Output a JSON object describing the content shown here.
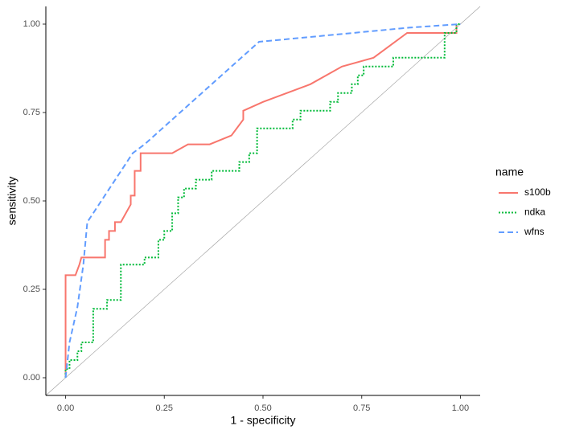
{
  "chart_data": {
    "type": "line",
    "x_label": "1 - specificity",
    "y_label": "sensitivity",
    "legend_title": "name",
    "legend": "right",
    "diagonal": true,
    "xlim": [
      -0.05,
      1.05
    ],
    "ylim": [
      -0.05,
      1.05
    ],
    "xticks": [
      {
        "value": 0,
        "label": "0.00"
      },
      {
        "value": 0.25,
        "label": "0.25"
      },
      {
        "value": 0.5,
        "label": "0.50"
      },
      {
        "value": 0.75,
        "label": "0.75"
      },
      {
        "value": 1,
        "label": "1.00"
      }
    ],
    "yticks": [
      {
        "value": 0,
        "label": "0.00"
      },
      {
        "value": 0.25,
        "label": "0.25"
      },
      {
        "value": 0.5,
        "label": "0.50"
      },
      {
        "value": 0.75,
        "label": "0.75"
      },
      {
        "value": 1,
        "label": "1.00"
      }
    ],
    "series": [
      {
        "name": "s100b",
        "color": "#F8766D",
        "linetype": "solid",
        "x": [
          0,
          0,
          0.025,
          0.035,
          0.04,
          0.1,
          0.1,
          0.11,
          0.11,
          0.125,
          0.125,
          0.14,
          0.165,
          0.165,
          0.175,
          0.175,
          0.19,
          0.19,
          0.27,
          0.31,
          0.365,
          0.42,
          0.45,
          0.45,
          0.5,
          0.62,
          0.7,
          0.78,
          0.865,
          0.99,
          0.99
        ],
        "values": [
          0,
          0.29,
          0.29,
          0.32,
          0.34,
          0.34,
          0.39,
          0.39,
          0.415,
          0.415,
          0.44,
          0.44,
          0.49,
          0.515,
          0.515,
          0.585,
          0.585,
          0.635,
          0.635,
          0.66,
          0.66,
          0.685,
          0.73,
          0.755,
          0.78,
          0.83,
          0.88,
          0.905,
          0.975,
          0.975,
          1
        ]
      },
      {
        "name": "ndka",
        "color": "#00BA38",
        "linetype": "dotted",
        "x": [
          0,
          0,
          0.01,
          0.01,
          0.03,
          0.03,
          0.04,
          0.04,
          0.07,
          0.07,
          0.105,
          0.105,
          0.14,
          0.14,
          0.2,
          0.2,
          0.235,
          0.235,
          0.25,
          0.25,
          0.27,
          0.27,
          0.285,
          0.285,
          0.3,
          0.3,
          0.33,
          0.33,
          0.37,
          0.37,
          0.44,
          0.44,
          0.465,
          0.465,
          0.485,
          0.485,
          0.575,
          0.575,
          0.595,
          0.595,
          0.67,
          0.67,
          0.69,
          0.69,
          0.725,
          0.725,
          0.74,
          0.74,
          0.755,
          0.755,
          0.83,
          0.83,
          0.96,
          0.96,
          0.99,
          0.99,
          1
        ],
        "values": [
          0,
          0.025,
          0.025,
          0.05,
          0.05,
          0.075,
          0.075,
          0.1,
          0.1,
          0.195,
          0.195,
          0.22,
          0.22,
          0.32,
          0.32,
          0.34,
          0.34,
          0.39,
          0.39,
          0.415,
          0.415,
          0.465,
          0.465,
          0.51,
          0.51,
          0.535,
          0.535,
          0.56,
          0.56,
          0.585,
          0.585,
          0.61,
          0.61,
          0.635,
          0.635,
          0.705,
          0.705,
          0.73,
          0.73,
          0.755,
          0.755,
          0.78,
          0.78,
          0.805,
          0.805,
          0.83,
          0.83,
          0.855,
          0.855,
          0.88,
          0.88,
          0.905,
          0.905,
          0.975,
          0.975,
          1,
          1
        ]
      },
      {
        "name": "wfns",
        "color": "#619CFF",
        "linetype": "dashed",
        "x": [
          0,
          0.01,
          0.03,
          0.045,
          0.055,
          0.17,
          0.2,
          0.42,
          0.49,
          0.87,
          1
        ],
        "values": [
          0,
          0.1,
          0.2,
          0.32,
          0.44,
          0.635,
          0.66,
          0.88,
          0.95,
          0.99,
          1
        ]
      }
    ]
  }
}
